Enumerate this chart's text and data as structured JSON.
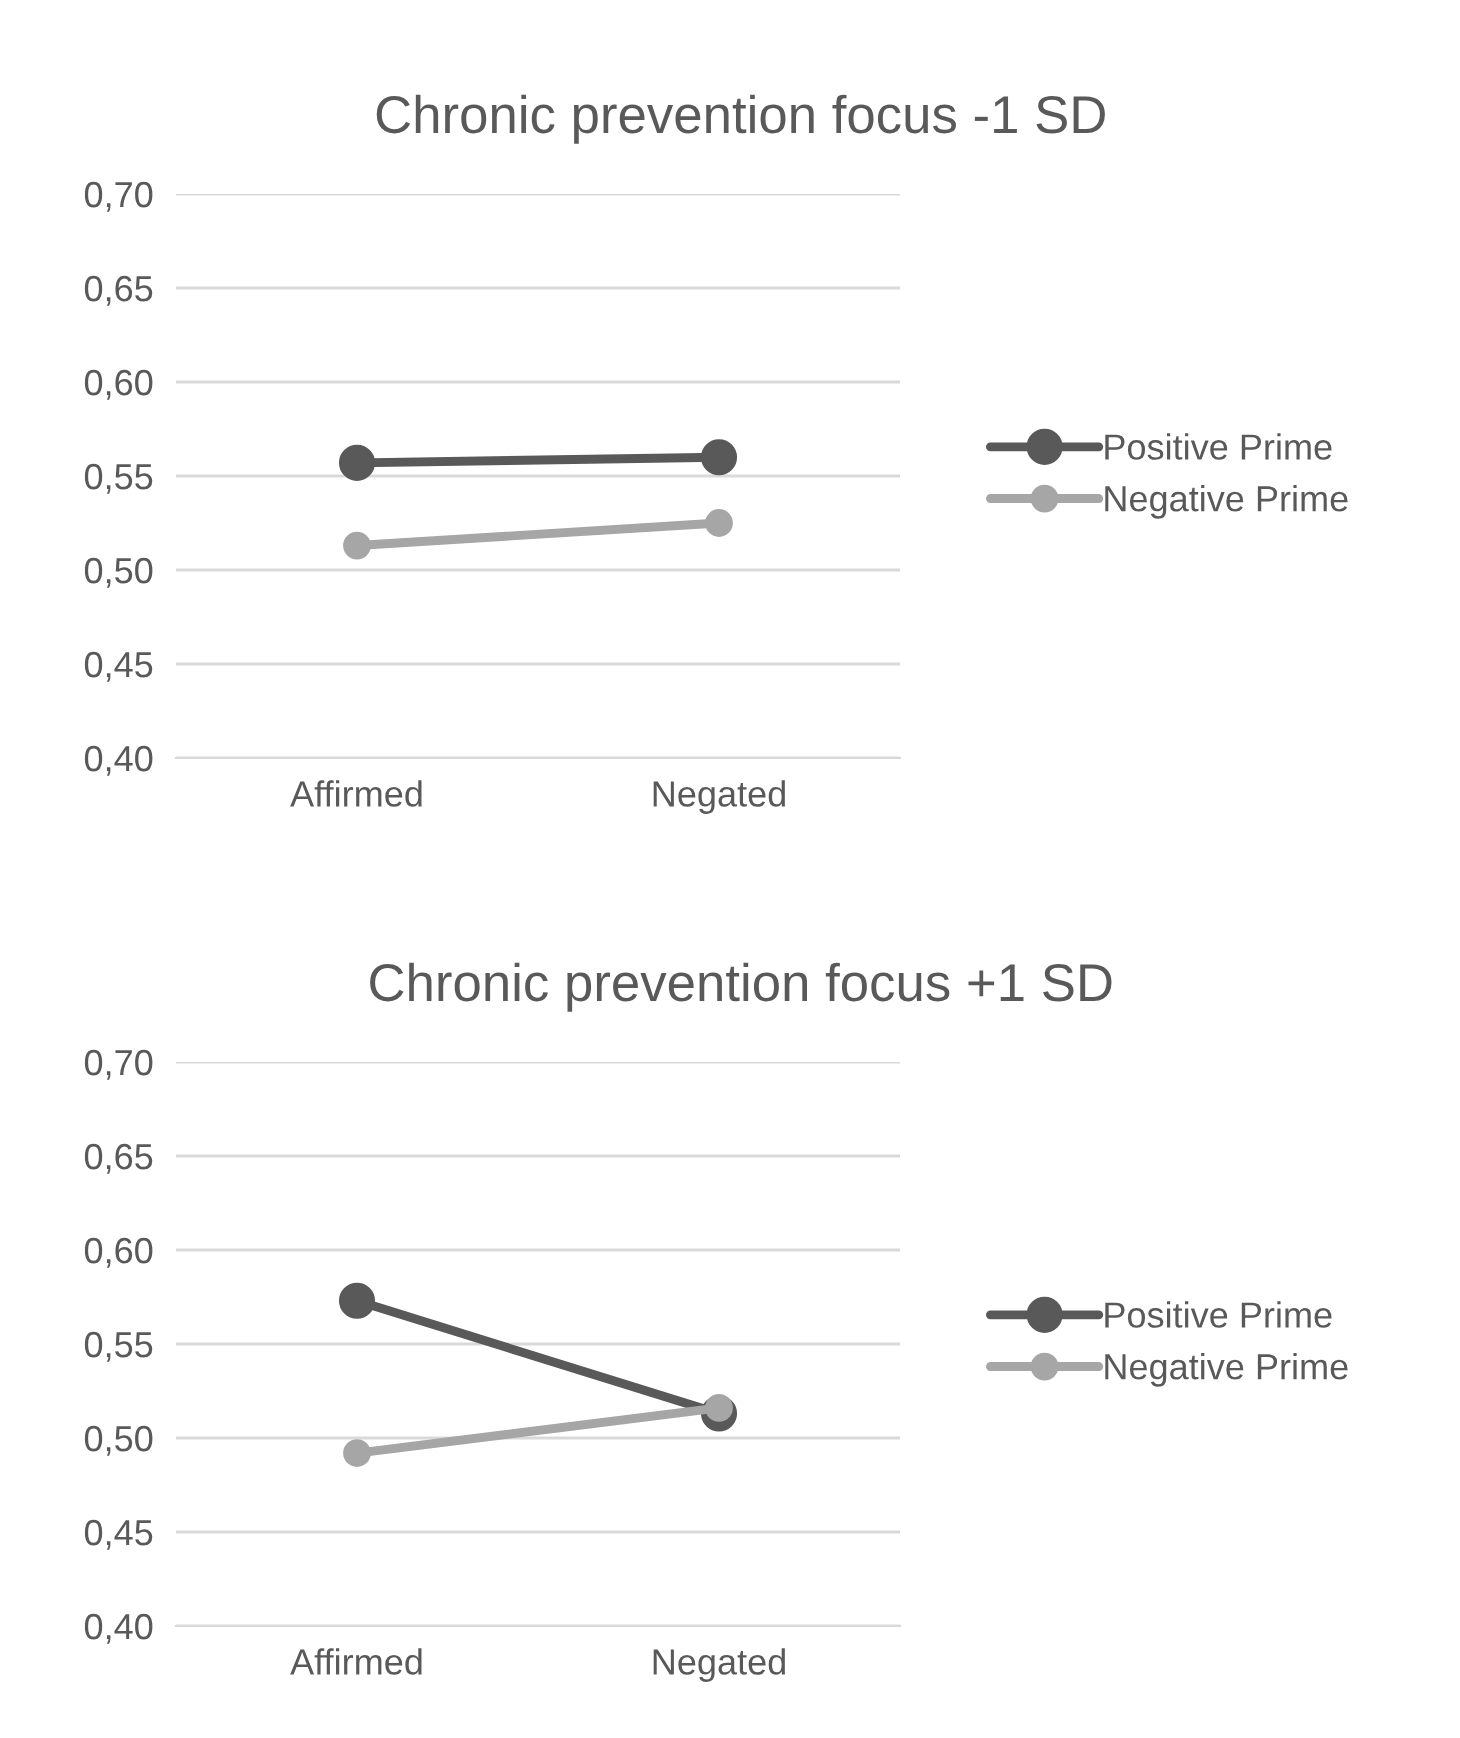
{
  "chart_data": [
    {
      "type": "line",
      "title": "Chronic prevention focus -1 SD",
      "categories": [
        "Affirmed",
        "Negated"
      ],
      "series": [
        {
          "name": "Positive Prime",
          "color": "#595959",
          "values": [
            0.557,
            0.56
          ]
        },
        {
          "name": "Negative Prime",
          "color": "#a6a6a6",
          "values": [
            0.513,
            0.525
          ]
        }
      ],
      "ylim": [
        0.4,
        0.7
      ],
      "yticks": [
        {
          "value": 0.4,
          "label": "0,40"
        },
        {
          "value": 0.45,
          "label": "0,45"
        },
        {
          "value": 0.5,
          "label": "0,50"
        },
        {
          "value": 0.55,
          "label": "0,55"
        },
        {
          "value": 0.6,
          "label": "0,60"
        },
        {
          "value": 0.65,
          "label": "0,65"
        },
        {
          "value": 0.7,
          "label": "0,70"
        }
      ],
      "grid": "y",
      "legend": "right",
      "marker": "circle",
      "line_style": "solid"
    },
    {
      "type": "line",
      "title": "Chronic prevention focus +1 SD",
      "categories": [
        "Affirmed",
        "Negated"
      ],
      "series": [
        {
          "name": "Positive Prime",
          "color": "#595959",
          "values": [
            0.573,
            0.513
          ]
        },
        {
          "name": "Negative Prime",
          "color": "#a6a6a6",
          "values": [
            0.492,
            0.516
          ]
        }
      ],
      "ylim": [
        0.4,
        0.7
      ],
      "yticks": [
        {
          "value": 0.4,
          "label": "0,40"
        },
        {
          "value": 0.45,
          "label": "0,45"
        },
        {
          "value": 0.5,
          "label": "0,50"
        },
        {
          "value": 0.55,
          "label": "0,55"
        },
        {
          "value": 0.6,
          "label": "0,60"
        },
        {
          "value": 0.65,
          "label": "0,65"
        },
        {
          "value": 0.7,
          "label": "0,70"
        }
      ],
      "grid": "y",
      "legend": "right",
      "marker": "circle",
      "line_style": "solid"
    }
  ]
}
